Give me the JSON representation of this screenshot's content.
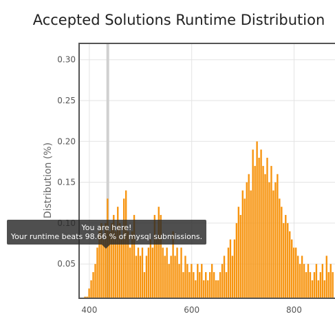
{
  "chart_data": {
    "type": "bar",
    "title": "Accepted Solutions Runtime Distribution",
    "xlabel": "",
    "ylabel": "Distribution (%)",
    "xlim": [
      380,
      880
    ],
    "ylim": [
      0.008,
      0.32
    ],
    "x_ticks": [
      400,
      600,
      800
    ],
    "y_ticks": [
      0.05,
      0.1,
      0.15,
      0.2,
      0.25,
      0.3
    ],
    "y_tick_labels": [
      "0.05",
      "0.10",
      "0.15",
      "0.20",
      "0.25",
      "0.30"
    ],
    "grid": true,
    "bar_color": "#f7940f",
    "highlight_x": 436,
    "tooltip": {
      "line1": "You are here!",
      "line2": "Your runtime beats 98.66 % of mysql submissions."
    },
    "x": [
      392,
      396,
      400,
      404,
      408,
      412,
      416,
      420,
      424,
      428,
      432,
      436,
      440,
      444,
      448,
      452,
      456,
      460,
      464,
      468,
      472,
      476,
      480,
      484,
      488,
      492,
      496,
      500,
      504,
      508,
      512,
      516,
      520,
      524,
      528,
      532,
      536,
      540,
      544,
      548,
      552,
      556,
      560,
      564,
      568,
      572,
      576,
      580,
      584,
      588,
      592,
      596,
      600,
      604,
      608,
      612,
      616,
      620,
      624,
      628,
      632,
      636,
      640,
      644,
      648,
      652,
      656,
      660,
      664,
      668,
      672,
      676,
      680,
      684,
      688,
      692,
      696,
      700,
      704,
      708,
      712,
      716,
      720,
      724,
      728,
      732,
      736,
      740,
      744,
      748,
      752,
      756,
      760,
      764,
      768,
      772,
      776,
      780,
      784,
      788,
      792,
      796,
      800,
      804,
      808,
      812,
      816,
      820,
      824,
      828,
      832,
      836,
      840,
      844,
      848,
      852,
      856,
      860,
      864,
      868,
      872,
      876
    ],
    "values": [
      0.01,
      0.01,
      0.02,
      0.03,
      0.04,
      0.05,
      0.07,
      0.09,
      0.1,
      0.08,
      0.1,
      0.13,
      0.09,
      0.1,
      0.11,
      0.09,
      0.12,
      0.1,
      0.08,
      0.13,
      0.14,
      0.09,
      0.07,
      0.09,
      0.11,
      0.06,
      0.07,
      0.06,
      0.07,
      0.04,
      0.06,
      0.07,
      0.08,
      0.07,
      0.11,
      0.08,
      0.12,
      0.11,
      0.07,
      0.06,
      0.07,
      0.05,
      0.06,
      0.09,
      0.06,
      0.07,
      0.05,
      0.07,
      0.04,
      0.06,
      0.05,
      0.04,
      0.05,
      0.04,
      0.03,
      0.05,
      0.04,
      0.05,
      0.03,
      0.04,
      0.03,
      0.04,
      0.05,
      0.04,
      0.03,
      0.03,
      0.04,
      0.05,
      0.06,
      0.04,
      0.07,
      0.08,
      0.06,
      0.08,
      0.1,
      0.12,
      0.11,
      0.14,
      0.13,
      0.15,
      0.16,
      0.14,
      0.19,
      0.17,
      0.2,
      0.18,
      0.19,
      0.17,
      0.16,
      0.18,
      0.15,
      0.17,
      0.14,
      0.15,
      0.16,
      0.13,
      0.12,
      0.1,
      0.11,
      0.1,
      0.09,
      0.08,
      0.07,
      0.07,
      0.06,
      0.05,
      0.06,
      0.05,
      0.04,
      0.05,
      0.04,
      0.03,
      0.04,
      0.05,
      0.03,
      0.04,
      0.05,
      0.03,
      0.06,
      0.04,
      0.05,
      0.04
    ]
  }
}
